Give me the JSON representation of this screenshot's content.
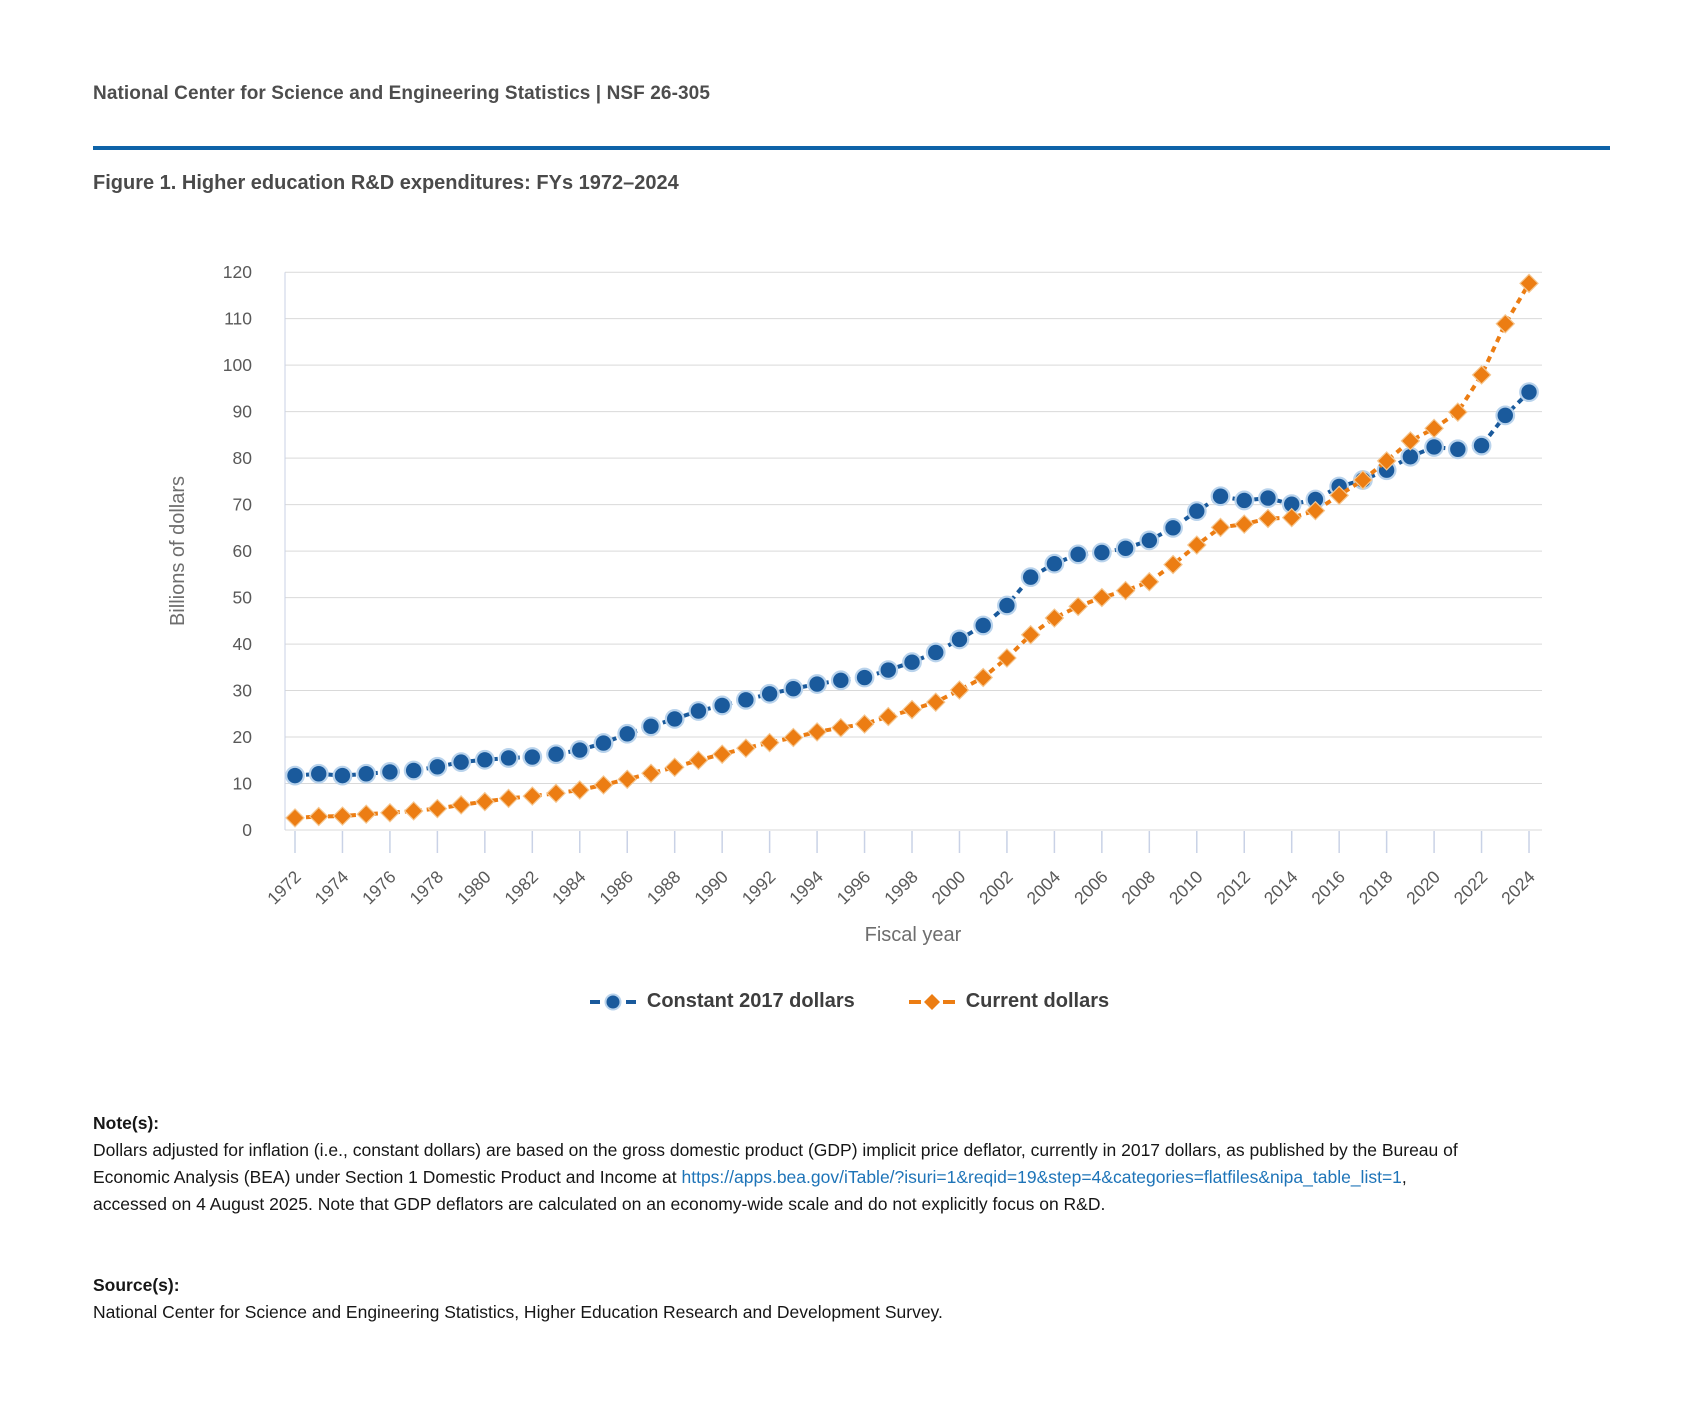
{
  "header": {
    "text": "National Center for Science and Engineering Statistics  |  NSF 26-305"
  },
  "figure": {
    "title": "Figure 1. Higher education R&D expenditures: FYs 1972–2024"
  },
  "chart_data": {
    "type": "line",
    "title": "Figure 1. Higher education R&D expenditures: FYs 1972–2024",
    "xlabel": "Fiscal year",
    "ylabel": "Billions of dollars",
    "ylim": [
      0,
      120
    ],
    "y_ticks": [
      0,
      10,
      20,
      30,
      40,
      50,
      60,
      70,
      80,
      90,
      100,
      110,
      120
    ],
    "x_tick_years": [
      1972,
      1974,
      1976,
      1978,
      1980,
      1982,
      1984,
      1986,
      1988,
      1990,
      1992,
      1994,
      1996,
      1998,
      2000,
      2002,
      2004,
      2006,
      2008,
      2010,
      2012,
      2014,
      2016,
      2018,
      2020,
      2022,
      2024
    ],
    "grid": "horizontal",
    "legend_position": "bottom",
    "years": [
      1972,
      1973,
      1974,
      1975,
      1976,
      1977,
      1978,
      1979,
      1980,
      1981,
      1982,
      1983,
      1984,
      1985,
      1986,
      1987,
      1988,
      1989,
      1990,
      1991,
      1992,
      1993,
      1994,
      1995,
      1996,
      1997,
      1998,
      1999,
      2000,
      2001,
      2002,
      2003,
      2004,
      2005,
      2006,
      2007,
      2008,
      2009,
      2010,
      2011,
      2012,
      2013,
      2014,
      2015,
      2016,
      2017,
      2018,
      2019,
      2020,
      2021,
      2022,
      2023,
      2024
    ],
    "series": [
      {
        "name": "Constant 2017 dollars",
        "marker": "circle",
        "color": "#1a5a9c",
        "marker_halo": "#b9d3ec",
        "values": [
          11.7,
          12.1,
          11.7,
          12.1,
          12.5,
          12.8,
          13.6,
          14.6,
          15.1,
          15.5,
          15.7,
          16.3,
          17.2,
          18.7,
          20.7,
          22.3,
          23.9,
          25.6,
          26.8,
          28.0,
          29.3,
          30.4,
          31.4,
          32.2,
          32.8,
          34.4,
          36.1,
          38.2,
          41.0,
          44.0,
          48.3,
          54.4,
          57.3,
          59.3,
          59.7,
          60.6,
          62.3,
          65.0,
          68.6,
          71.8,
          70.9,
          71.4,
          70.1,
          71.1,
          73.9,
          75.3,
          77.4,
          80.3,
          82.4,
          81.9,
          82.7,
          89.2,
          94.2
        ]
      },
      {
        "name": "Current dollars",
        "marker": "diamond",
        "color": "#ec7d13",
        "marker_halo": "#f5c68f",
        "values": [
          2.6,
          2.9,
          3.0,
          3.4,
          3.7,
          4.1,
          4.6,
          5.4,
          6.1,
          6.8,
          7.3,
          7.9,
          8.6,
          9.7,
          10.9,
          12.2,
          13.5,
          15.0,
          16.3,
          17.6,
          18.8,
          19.9,
          21.1,
          22.0,
          22.8,
          24.4,
          25.9,
          27.5,
          30.1,
          32.8,
          37.0,
          42.0,
          45.6,
          48.1,
          50.0,
          51.5,
          53.4,
          57.1,
          61.3,
          65.1,
          65.8,
          67.0,
          67.2,
          68.7,
          72.0,
          75.3,
          79.4,
          83.7,
          86.4,
          89.9,
          97.9,
          108.9,
          117.6
        ]
      }
    ],
    "colors": {
      "gridline": "#d9d9d9",
      "axis_line": "#c9d2e6",
      "tick_mark": "#c9d2e6",
      "tick_label": "#595959",
      "axis_title": "#6e6e6e",
      "divider_blue": "#0e63a8"
    }
  },
  "notes": {
    "heading": "Note(s):",
    "part1": "Dollars adjusted for inflation (i.e., constant dollars) are based on the gross domestic product (GDP) implicit price deflator, currently in 2017 dollars, as published by the Bureau of Economic Analysis (BEA) under Section 1 Domestic Product and Income at ",
    "link_text": "https://apps.bea.gov/iTable/?isuri=1&reqid=19&step=4&categories=flatfiles&nipa_table_list=1",
    "part2": ", accessed on 4 August 2025. Note that GDP deflators are calculated on an economy-wide scale and do not explicitly focus on R&D."
  },
  "source": {
    "heading": "Source(s):",
    "text": "National Center for Science and Engineering Statistics, Higher Education Research and Development Survey."
  }
}
